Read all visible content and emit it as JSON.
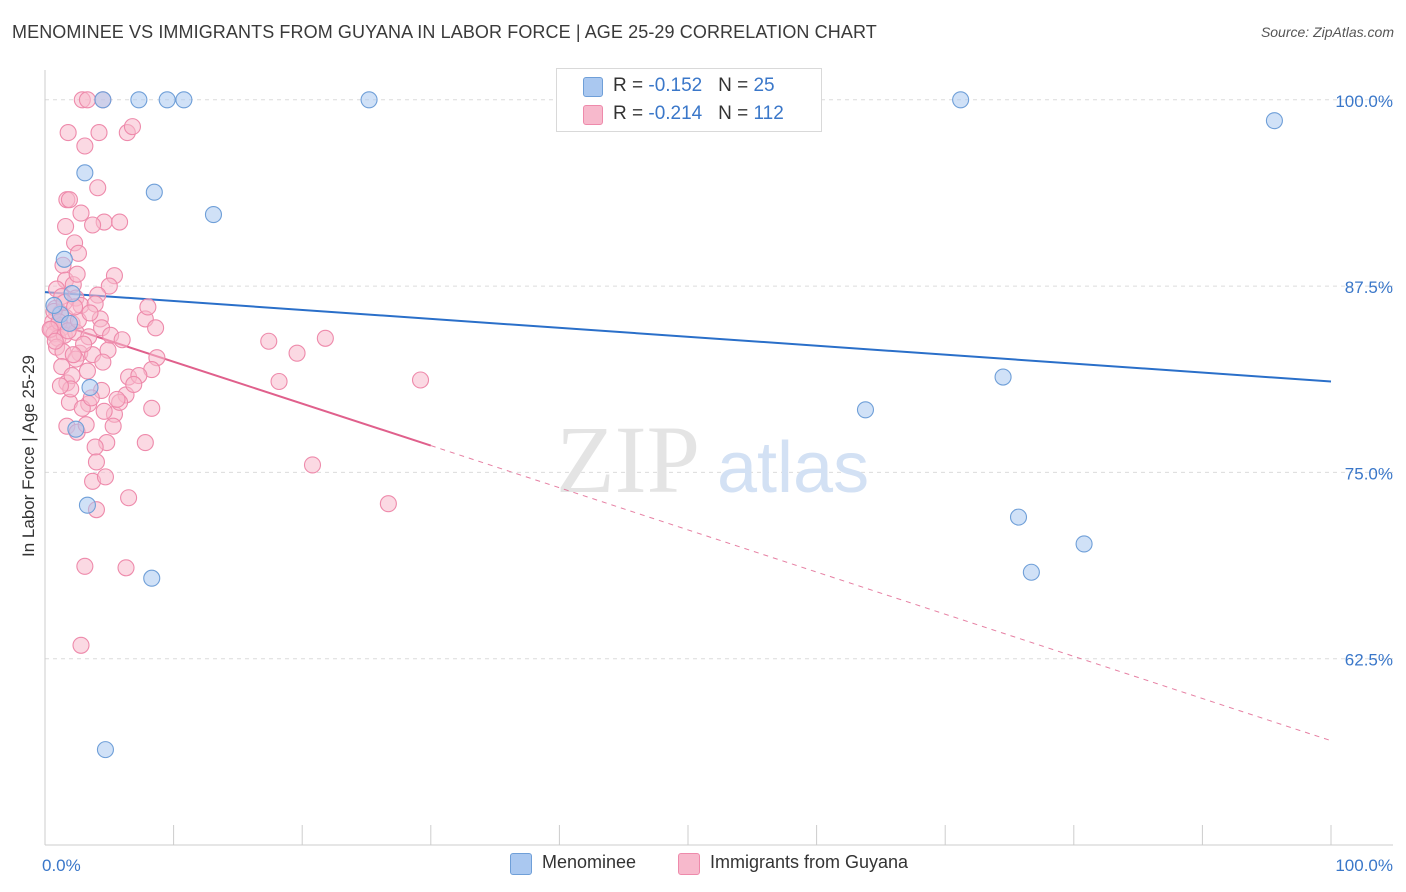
{
  "title": "MENOMINEE VS IMMIGRANTS FROM GUYANA IN LABOR FORCE | AGE 25-29 CORRELATION CHART",
  "source": "Source: ZipAtlas.com",
  "watermark": {
    "zip": "ZIP",
    "atlas": "atlas"
  },
  "legend": {
    "rows": [
      {
        "r_label": "R = ",
        "r_value": "-0.152",
        "n_label": "N = ",
        "n_value": "25"
      },
      {
        "r_label": "R = ",
        "r_value": "-0.214",
        "n_label": "N = ",
        "n_value": "112"
      }
    ]
  },
  "colors": {
    "blue_fill": "#aac8f0",
    "blue_stroke": "#6f9fd8",
    "blue_line": "#2a6fc9",
    "pink_fill": "#f7b9cc",
    "pink_stroke": "#ee8aab",
    "pink_line": "#e0608c",
    "tick_label": "#3a77c9",
    "grid": "#dcdcdc"
  },
  "chart_data": {
    "type": "scatter",
    "title": "MENOMINEE VS IMMIGRANTS FROM GUYANA IN LABOR FORCE | AGE 25-29 CORRELATION CHART",
    "xlabel": "",
    "ylabel": "In Labor Force | Age 25-29",
    "xlim": [
      0,
      100
    ],
    "ylim": [
      50,
      102
    ],
    "x_tick_labels": [
      "0.0%",
      "100.0%"
    ],
    "y_ticks": [
      62.5,
      75.0,
      87.5,
      100.0
    ],
    "y_tick_labels": [
      "62.5%",
      "75.0%",
      "87.5%",
      "100.0%"
    ],
    "legend_position": "top-center",
    "series": [
      {
        "name": "Menominee",
        "r": -0.152,
        "n": 25,
        "points": [
          [
            4.5,
            100
          ],
          [
            7.3,
            100
          ],
          [
            9.5,
            100
          ],
          [
            10.8,
            100
          ],
          [
            25.2,
            100
          ],
          [
            71.2,
            100
          ],
          [
            95.6,
            98.6
          ],
          [
            3.1,
            95.1
          ],
          [
            8.5,
            93.8
          ],
          [
            13.1,
            92.3
          ],
          [
            1.5,
            89.3
          ],
          [
            2.1,
            87
          ],
          [
            1.2,
            85.6
          ],
          [
            1.9,
            85
          ],
          [
            3.5,
            80.7
          ],
          [
            2.4,
            77.9
          ],
          [
            3.3,
            72.8
          ],
          [
            8.3,
            67.9
          ],
          [
            4.7,
            56.4
          ],
          [
            63.8,
            79.2
          ],
          [
            74.5,
            81.4
          ],
          [
            75.7,
            72
          ],
          [
            76.7,
            68.3
          ],
          [
            80.8,
            70.2
          ],
          [
            0.7,
            86.2
          ]
        ],
        "trend": {
          "x0": 0,
          "y0": 87.1,
          "x1": 100,
          "y1": 81.1
        }
      },
      {
        "name": "Immigrants from Guyana",
        "r": -0.214,
        "n": 112,
        "points": [
          [
            4.5,
            100
          ],
          [
            2.9,
            100
          ],
          [
            3.3,
            100
          ],
          [
            1.8,
            97.8
          ],
          [
            4.2,
            97.8
          ],
          [
            6.4,
            97.8
          ],
          [
            6.8,
            98.2
          ],
          [
            3.1,
            96.9
          ],
          [
            4.1,
            94.1
          ],
          [
            1.7,
            93.3
          ],
          [
            1.9,
            93.3
          ],
          [
            2.8,
            92.4
          ],
          [
            4.6,
            91.8
          ],
          [
            3.7,
            91.6
          ],
          [
            5.8,
            91.8
          ],
          [
            1.6,
            91.5
          ],
          [
            2.3,
            90.4
          ],
          [
            2.6,
            89.7
          ],
          [
            1.4,
            88.9
          ],
          [
            5.4,
            88.2
          ],
          [
            1.6,
            87.9
          ],
          [
            2.2,
            87.6
          ],
          [
            5.0,
            87.5
          ],
          [
            0.9,
            87.3
          ],
          [
            1.3,
            86.8
          ],
          [
            2.4,
            86.7
          ],
          [
            4.1,
            86.9
          ],
          [
            2.8,
            86.2
          ],
          [
            0.8,
            86.0
          ],
          [
            1.2,
            85.7
          ],
          [
            1.6,
            85.4
          ],
          [
            0.6,
            85.1
          ],
          [
            1.0,
            84.9
          ],
          [
            0.5,
            84.6
          ],
          [
            1.3,
            84.7
          ],
          [
            2.1,
            85.0
          ],
          [
            0.7,
            84.3
          ],
          [
            1.0,
            84.0
          ],
          [
            1.5,
            84.2
          ],
          [
            2.4,
            84.4
          ],
          [
            3.4,
            84.1
          ],
          [
            4.3,
            85.3
          ],
          [
            7.8,
            85.3
          ],
          [
            8.6,
            84.7
          ],
          [
            4.4,
            84.7
          ],
          [
            0.9,
            83.4
          ],
          [
            1.4,
            83.1
          ],
          [
            2.7,
            83.0
          ],
          [
            3.7,
            82.9
          ],
          [
            8.7,
            82.7
          ],
          [
            1.3,
            82.1
          ],
          [
            2.4,
            82.6
          ],
          [
            3.3,
            81.8
          ],
          [
            6.5,
            81.4
          ],
          [
            1.7,
            81.0
          ],
          [
            2.1,
            81.5
          ],
          [
            8.3,
            81.9
          ],
          [
            7.3,
            81.5
          ],
          [
            3.4,
            79.6
          ],
          [
            4.4,
            80.5
          ],
          [
            6.3,
            80.2
          ],
          [
            1.9,
            79.7
          ],
          [
            2.9,
            79.3
          ],
          [
            5.4,
            78.9
          ],
          [
            8.3,
            79.3
          ],
          [
            1.7,
            78.1
          ],
          [
            2.5,
            77.7
          ],
          [
            5.3,
            78.1
          ],
          [
            4.8,
            77.0
          ],
          [
            7.8,
            77.0
          ],
          [
            3.9,
            76.7
          ],
          [
            3.7,
            74.4
          ],
          [
            4.7,
            74.7
          ],
          [
            6.5,
            73.3
          ],
          [
            4.0,
            72.5
          ],
          [
            18.2,
            81.1
          ],
          [
            19.6,
            83.0
          ],
          [
            17.4,
            83.8
          ],
          [
            21.8,
            84.0
          ],
          [
            29.2,
            81.2
          ],
          [
            20.8,
            75.5
          ],
          [
            26.7,
            72.9
          ],
          [
            3.1,
            68.7
          ],
          [
            6.3,
            68.6
          ],
          [
            2.8,
            63.4
          ],
          [
            0.7,
            85.8
          ],
          [
            1.1,
            85.1
          ],
          [
            0.4,
            84.6
          ],
          [
            1.8,
            84.5
          ],
          [
            2.6,
            85.2
          ],
          [
            3.9,
            86.3
          ],
          [
            5.1,
            84.2
          ],
          [
            3.0,
            83.6
          ],
          [
            6.0,
            83.9
          ],
          [
            2.2,
            82.9
          ],
          [
            4.9,
            83.2
          ],
          [
            3.6,
            80.0
          ],
          [
            5.8,
            79.7
          ],
          [
            2.0,
            80.6
          ],
          [
            4.6,
            79.1
          ],
          [
            3.2,
            78.2
          ],
          [
            6.9,
            80.9
          ],
          [
            4.0,
            75.7
          ],
          [
            8.0,
            86.1
          ],
          [
            2.5,
            88.3
          ],
          [
            1.5,
            86.4
          ],
          [
            3.5,
            85.7
          ],
          [
            0.8,
            83.8
          ],
          [
            2.3,
            86.1
          ],
          [
            1.2,
            80.8
          ],
          [
            5.6,
            79.9
          ],
          [
            4.5,
            82.4
          ]
        ],
        "trend": {
          "x0": 0.5,
          "y0": 85.1,
          "x1": 30,
          "y1": 76.8
        },
        "trend_extension": {
          "x0": 30,
          "y0": 76.8,
          "x1": 100,
          "y1": 57.0
        }
      }
    ]
  },
  "bottom_legend": {
    "blue_label": "Menominee",
    "pink_label": "Immigrants from Guyana"
  }
}
